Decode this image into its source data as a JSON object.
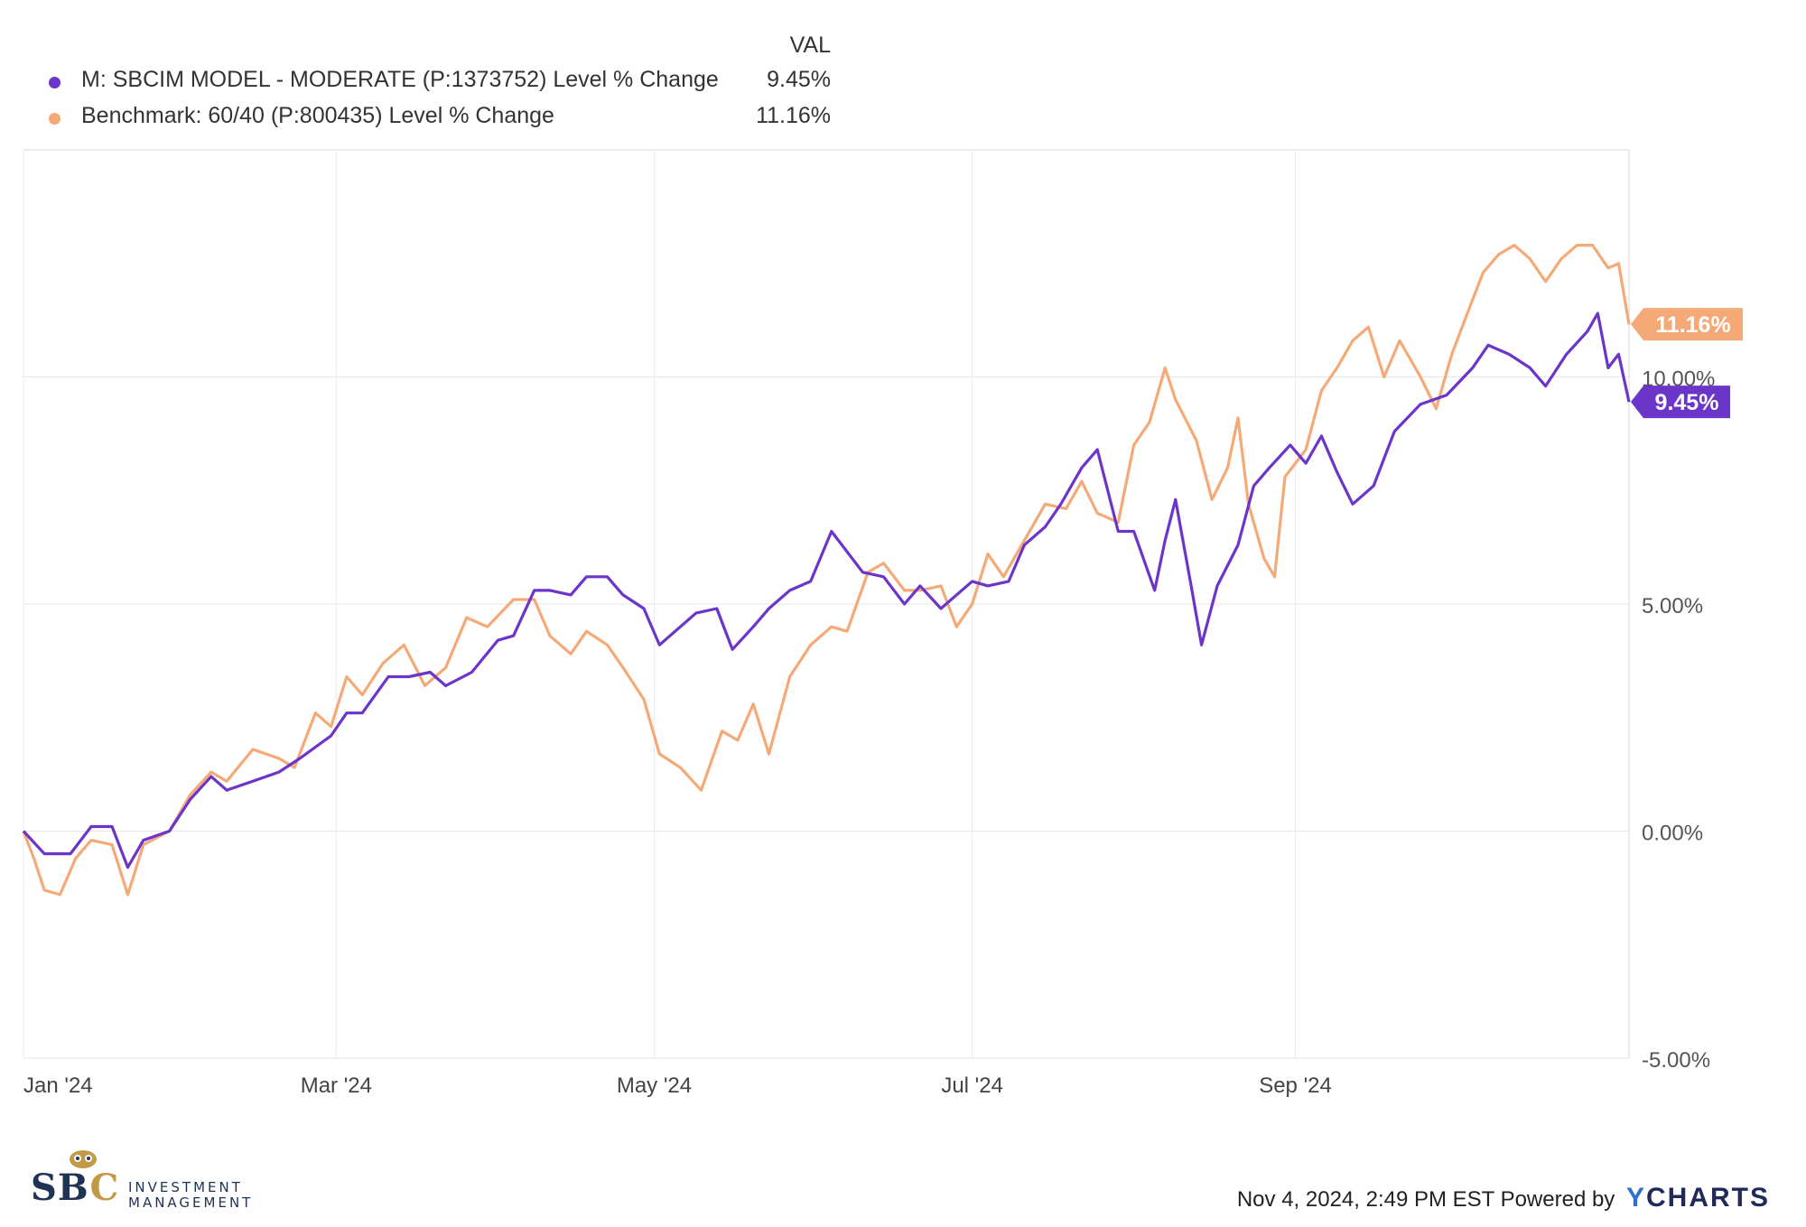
{
  "legend": {
    "header": "VAL",
    "items": [
      {
        "label": "M: SBCIM MODEL - MODERATE (P:1373752) Level % Change",
        "value": "9.45%",
        "color": "#6b35c9"
      },
      {
        "label": "Benchmark: 60/40 (P:800435) Level % Change",
        "value": "11.16%",
        "color": "#f5a977"
      }
    ]
  },
  "chart_data": {
    "type": "line",
    "x_ticks": [
      "Jan '24",
      "Mar '24",
      "May '24",
      "Jul '24",
      "Sep '24"
    ],
    "y_ticks": [
      "10.00%",
      "5.00%",
      "0.00%",
      "-5.00%"
    ],
    "y_tick_values": [
      10,
      5,
      0,
      -5
    ],
    "ylim": [
      -5,
      15
    ],
    "xlim": [
      "2024-01-01",
      "2024-11-04"
    ],
    "grid": true,
    "legend_position": "top-left",
    "series": [
      {
        "name": "M: SBCIM MODEL - MODERATE (P:1373752) Level % Change",
        "color": "#6b35c9",
        "end_label": "9.45%",
        "points": [
          [
            "2024-01-01",
            0
          ],
          [
            "2024-01-05",
            -0.5
          ],
          [
            "2024-01-10",
            -0.5
          ],
          [
            "2024-01-14",
            0.1
          ],
          [
            "2024-01-18",
            0.1
          ],
          [
            "2024-01-21",
            -0.8
          ],
          [
            "2024-01-24",
            -0.2
          ],
          [
            "2024-01-29",
            0
          ],
          [
            "2024-02-02",
            0.7
          ],
          [
            "2024-02-06",
            1.2
          ],
          [
            "2024-02-09",
            0.9
          ],
          [
            "2024-02-14",
            1.1
          ],
          [
            "2024-02-19",
            1.3
          ],
          [
            "2024-02-23",
            1.6
          ],
          [
            "2024-02-29",
            2.1
          ],
          [
            "2024-03-03",
            2.6
          ],
          [
            "2024-03-06",
            2.6
          ],
          [
            "2024-03-11",
            3.4
          ],
          [
            "2024-03-15",
            3.4
          ],
          [
            "2024-03-19",
            3.5
          ],
          [
            "2024-03-22",
            3.2
          ],
          [
            "2024-03-27",
            3.5
          ],
          [
            "2024-04-01",
            4.2
          ],
          [
            "2024-04-04",
            4.3
          ],
          [
            "2024-04-08",
            5.3
          ],
          [
            "2024-04-11",
            5.3
          ],
          [
            "2024-04-15",
            5.2
          ],
          [
            "2024-04-18",
            5.6
          ],
          [
            "2024-04-22",
            5.6
          ],
          [
            "2024-04-25",
            5.2
          ],
          [
            "2024-04-29",
            4.9
          ],
          [
            "2024-05-02",
            4.1
          ],
          [
            "2024-05-06",
            4.5
          ],
          [
            "2024-05-09",
            4.8
          ],
          [
            "2024-05-13",
            4.9
          ],
          [
            "2024-05-16",
            4.0
          ],
          [
            "2024-05-20",
            4.5
          ],
          [
            "2024-05-23",
            4.9
          ],
          [
            "2024-05-27",
            5.3
          ],
          [
            "2024-05-31",
            5.5
          ],
          [
            "2024-06-04",
            6.6
          ],
          [
            "2024-06-10",
            5.7
          ],
          [
            "2024-06-14",
            5.6
          ],
          [
            "2024-06-18",
            5.0
          ],
          [
            "2024-06-21",
            5.4
          ],
          [
            "2024-06-25",
            4.9
          ],
          [
            "2024-06-28",
            5.2
          ],
          [
            "2024-07-01",
            5.5
          ],
          [
            "2024-07-04",
            5.4
          ],
          [
            "2024-07-08",
            5.5
          ],
          [
            "2024-07-11",
            6.3
          ],
          [
            "2024-07-15",
            6.7
          ],
          [
            "2024-07-18",
            7.2
          ],
          [
            "2024-07-22",
            8.0
          ],
          [
            "2024-07-25",
            8.4
          ],
          [
            "2024-07-29",
            6.6
          ],
          [
            "2024-08-01",
            6.6
          ],
          [
            "2024-08-05",
            5.3
          ],
          [
            "2024-08-07",
            6.4
          ],
          [
            "2024-08-09",
            7.3
          ],
          [
            "2024-08-12",
            5.4
          ],
          [
            "2024-08-14",
            4.1
          ],
          [
            "2024-08-17",
            5.4
          ],
          [
            "2024-08-21",
            6.3
          ],
          [
            "2024-08-24",
            7.6
          ],
          [
            "2024-08-27",
            8.0
          ],
          [
            "2024-08-31",
            8.5
          ],
          [
            "2024-09-03",
            8.1
          ],
          [
            "2024-09-06",
            8.7
          ],
          [
            "2024-09-09",
            7.9
          ],
          [
            "2024-09-12",
            7.2
          ],
          [
            "2024-09-16",
            7.6
          ],
          [
            "2024-09-20",
            8.8
          ],
          [
            "2024-09-25",
            9.4
          ],
          [
            "2024-09-30",
            9.6
          ],
          [
            "2024-10-05",
            10.2
          ],
          [
            "2024-10-08",
            10.7
          ],
          [
            "2024-10-12",
            10.5
          ],
          [
            "2024-10-16",
            10.2
          ],
          [
            "2024-10-19",
            9.8
          ],
          [
            "2024-10-23",
            10.5
          ],
          [
            "2024-10-27",
            11.0
          ],
          [
            "2024-10-29",
            11.4
          ],
          [
            "2024-10-31",
            10.2
          ],
          [
            "2024-11-02",
            10.5
          ],
          [
            "2024-11-04",
            9.45
          ]
        ]
      },
      {
        "name": "Benchmark: 60/40 (P:800435) Level % Change",
        "color": "#f5a977",
        "end_label": "11.16%",
        "points": [
          [
            "2024-01-01",
            0
          ],
          [
            "2024-01-03",
            -0.6
          ],
          [
            "2024-01-05",
            -1.3
          ],
          [
            "2024-01-08",
            -1.4
          ],
          [
            "2024-01-11",
            -0.6
          ],
          [
            "2024-01-14",
            -0.2
          ],
          [
            "2024-01-18",
            -0.3
          ],
          [
            "2024-01-21",
            -1.4
          ],
          [
            "2024-01-24",
            -0.3
          ],
          [
            "2024-01-29",
            0
          ],
          [
            "2024-02-02",
            0.8
          ],
          [
            "2024-02-06",
            1.3
          ],
          [
            "2024-02-09",
            1.1
          ],
          [
            "2024-02-14",
            1.8
          ],
          [
            "2024-02-19",
            1.6
          ],
          [
            "2024-02-22",
            1.4
          ],
          [
            "2024-02-26",
            2.6
          ],
          [
            "2024-02-29",
            2.3
          ],
          [
            "2024-03-03",
            3.4
          ],
          [
            "2024-03-06",
            3.0
          ],
          [
            "2024-03-10",
            3.7
          ],
          [
            "2024-03-14",
            4.1
          ],
          [
            "2024-03-18",
            3.2
          ],
          [
            "2024-03-22",
            3.6
          ],
          [
            "2024-03-26",
            4.7
          ],
          [
            "2024-03-30",
            4.5
          ],
          [
            "2024-04-04",
            5.1
          ],
          [
            "2024-04-08",
            5.1
          ],
          [
            "2024-04-11",
            4.3
          ],
          [
            "2024-04-15",
            3.9
          ],
          [
            "2024-04-18",
            4.4
          ],
          [
            "2024-04-22",
            4.1
          ],
          [
            "2024-04-25",
            3.6
          ],
          [
            "2024-04-29",
            2.9
          ],
          [
            "2024-05-02",
            1.7
          ],
          [
            "2024-05-06",
            1.4
          ],
          [
            "2024-05-10",
            0.9
          ],
          [
            "2024-05-14",
            2.2
          ],
          [
            "2024-05-17",
            2.0
          ],
          [
            "2024-05-20",
            2.8
          ],
          [
            "2024-05-23",
            1.7
          ],
          [
            "2024-05-27",
            3.4
          ],
          [
            "2024-05-31",
            4.1
          ],
          [
            "2024-06-04",
            4.5
          ],
          [
            "2024-06-07",
            4.4
          ],
          [
            "2024-06-11",
            5.7
          ],
          [
            "2024-06-14",
            5.9
          ],
          [
            "2024-06-18",
            5.3
          ],
          [
            "2024-06-21",
            5.3
          ],
          [
            "2024-06-25",
            5.4
          ],
          [
            "2024-06-28",
            4.5
          ],
          [
            "2024-07-01",
            5.0
          ],
          [
            "2024-07-04",
            6.1
          ],
          [
            "2024-07-07",
            5.6
          ],
          [
            "2024-07-11",
            6.4
          ],
          [
            "2024-07-15",
            7.2
          ],
          [
            "2024-07-19",
            7.1
          ],
          [
            "2024-07-22",
            7.7
          ],
          [
            "2024-07-25",
            7.0
          ],
          [
            "2024-07-29",
            6.8
          ],
          [
            "2024-08-01",
            8.5
          ],
          [
            "2024-08-04",
            9.0
          ],
          [
            "2024-08-07",
            10.2
          ],
          [
            "2024-08-09",
            9.5
          ],
          [
            "2024-08-13",
            8.6
          ],
          [
            "2024-08-16",
            7.3
          ],
          [
            "2024-08-19",
            8.0
          ],
          [
            "2024-08-21",
            9.1
          ],
          [
            "2024-08-23",
            7.2
          ],
          [
            "2024-08-26",
            6.0
          ],
          [
            "2024-08-28",
            5.6
          ],
          [
            "2024-08-30",
            7.8
          ],
          [
            "2024-09-03",
            8.4
          ],
          [
            "2024-09-06",
            9.7
          ],
          [
            "2024-09-09",
            10.2
          ],
          [
            "2024-09-12",
            10.8
          ],
          [
            "2024-09-15",
            11.1
          ],
          [
            "2024-09-18",
            10.0
          ],
          [
            "2024-09-21",
            10.8
          ],
          [
            "2024-09-25",
            10.0
          ],
          [
            "2024-09-28",
            9.3
          ],
          [
            "2024-10-01",
            10.5
          ],
          [
            "2024-10-04",
            11.4
          ],
          [
            "2024-10-07",
            12.3
          ],
          [
            "2024-10-10",
            12.7
          ],
          [
            "2024-10-13",
            12.9
          ],
          [
            "2024-10-16",
            12.6
          ],
          [
            "2024-10-19",
            12.1
          ],
          [
            "2024-10-22",
            12.6
          ],
          [
            "2024-10-25",
            12.9
          ],
          [
            "2024-10-28",
            12.9
          ],
          [
            "2024-10-31",
            12.4
          ],
          [
            "2024-11-02",
            12.5
          ],
          [
            "2024-11-04",
            11.16
          ]
        ]
      }
    ]
  },
  "footer": {
    "timestamp": "Nov 4, 2024, 2:49 PM EST",
    "powered_by": "Powered by",
    "brand_y": "Y",
    "brand_rest": "CHARTS"
  },
  "logo": {
    "sbc_part1": "SB",
    "sbc_part2": "C",
    "line1": "INVESTMENT",
    "line2": "MANAGEMENT",
    "colors": {
      "navy": "#1f3354",
      "gold": "#c29a46"
    }
  }
}
